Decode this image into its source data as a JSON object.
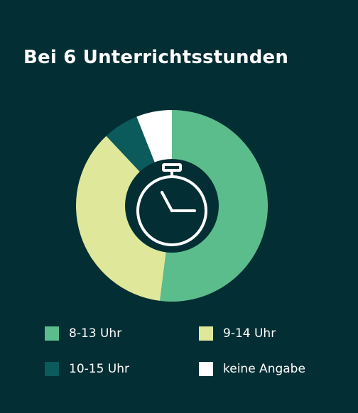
{
  "chart_data": {
    "type": "pie",
    "title": "Bei 6  Unterrichtsstunden",
    "slices": [
      {
        "label": "8-13 Uhr",
        "value": 52,
        "color": "#5bbd8c"
      },
      {
        "label": "9-14 Uhr",
        "value": 36,
        "color": "#dfe89a"
      },
      {
        "label": "10-15 Uhr",
        "value": 6,
        "color": "#0b5a5c"
      },
      {
        "label": "keine Angabe",
        "value": 6,
        "color": "#ffffff"
      }
    ],
    "legend_position": "bottom",
    "center_icon": "stopwatch-icon"
  }
}
